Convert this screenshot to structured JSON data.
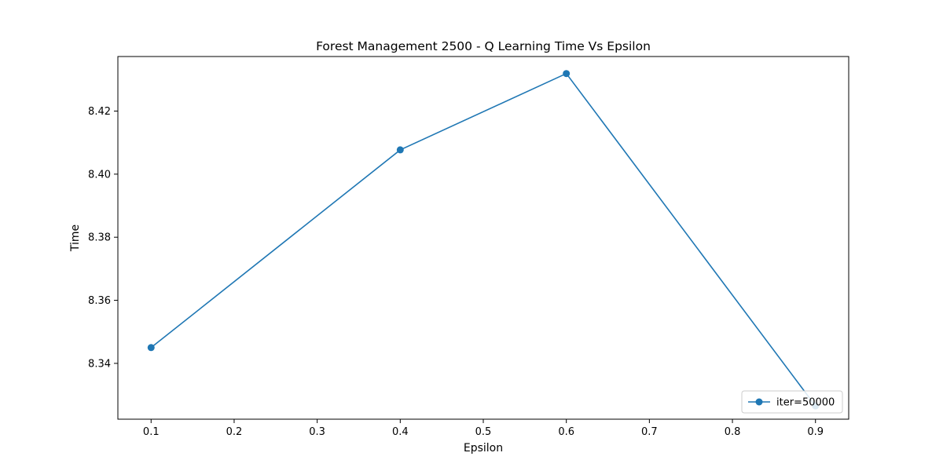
{
  "chart_data": {
    "type": "line",
    "title": "Forest Management 2500 - Q Learning Time Vs Epsilon",
    "xlabel": "Epsilon",
    "ylabel": "Time",
    "xlim": [
      0.06,
      0.94
    ],
    "ylim": [
      8.3223,
      8.4373
    ],
    "x_ticks": [
      0.1,
      0.2,
      0.3,
      0.4,
      0.5,
      0.6,
      0.7,
      0.8,
      0.9
    ],
    "x_tick_labels": [
      "0.1",
      "0.2",
      "0.3",
      "0.4",
      "0.5",
      "0.6",
      "0.7",
      "0.8",
      "0.9"
    ],
    "y_ticks": [
      8.34,
      8.36,
      8.38,
      8.4,
      8.42
    ],
    "y_tick_labels": [
      "8.34",
      "8.36",
      "8.38",
      "8.40",
      "8.42"
    ],
    "grid": false,
    "legend_position": "bottom-right",
    "series": [
      {
        "name": "iter=50000",
        "color": "#1f77b4",
        "marker": "circle",
        "x": [
          0.1,
          0.4,
          0.6,
          0.9
        ],
        "y": [
          8.345,
          8.4077,
          8.4319,
          8.3265
        ]
      }
    ]
  }
}
